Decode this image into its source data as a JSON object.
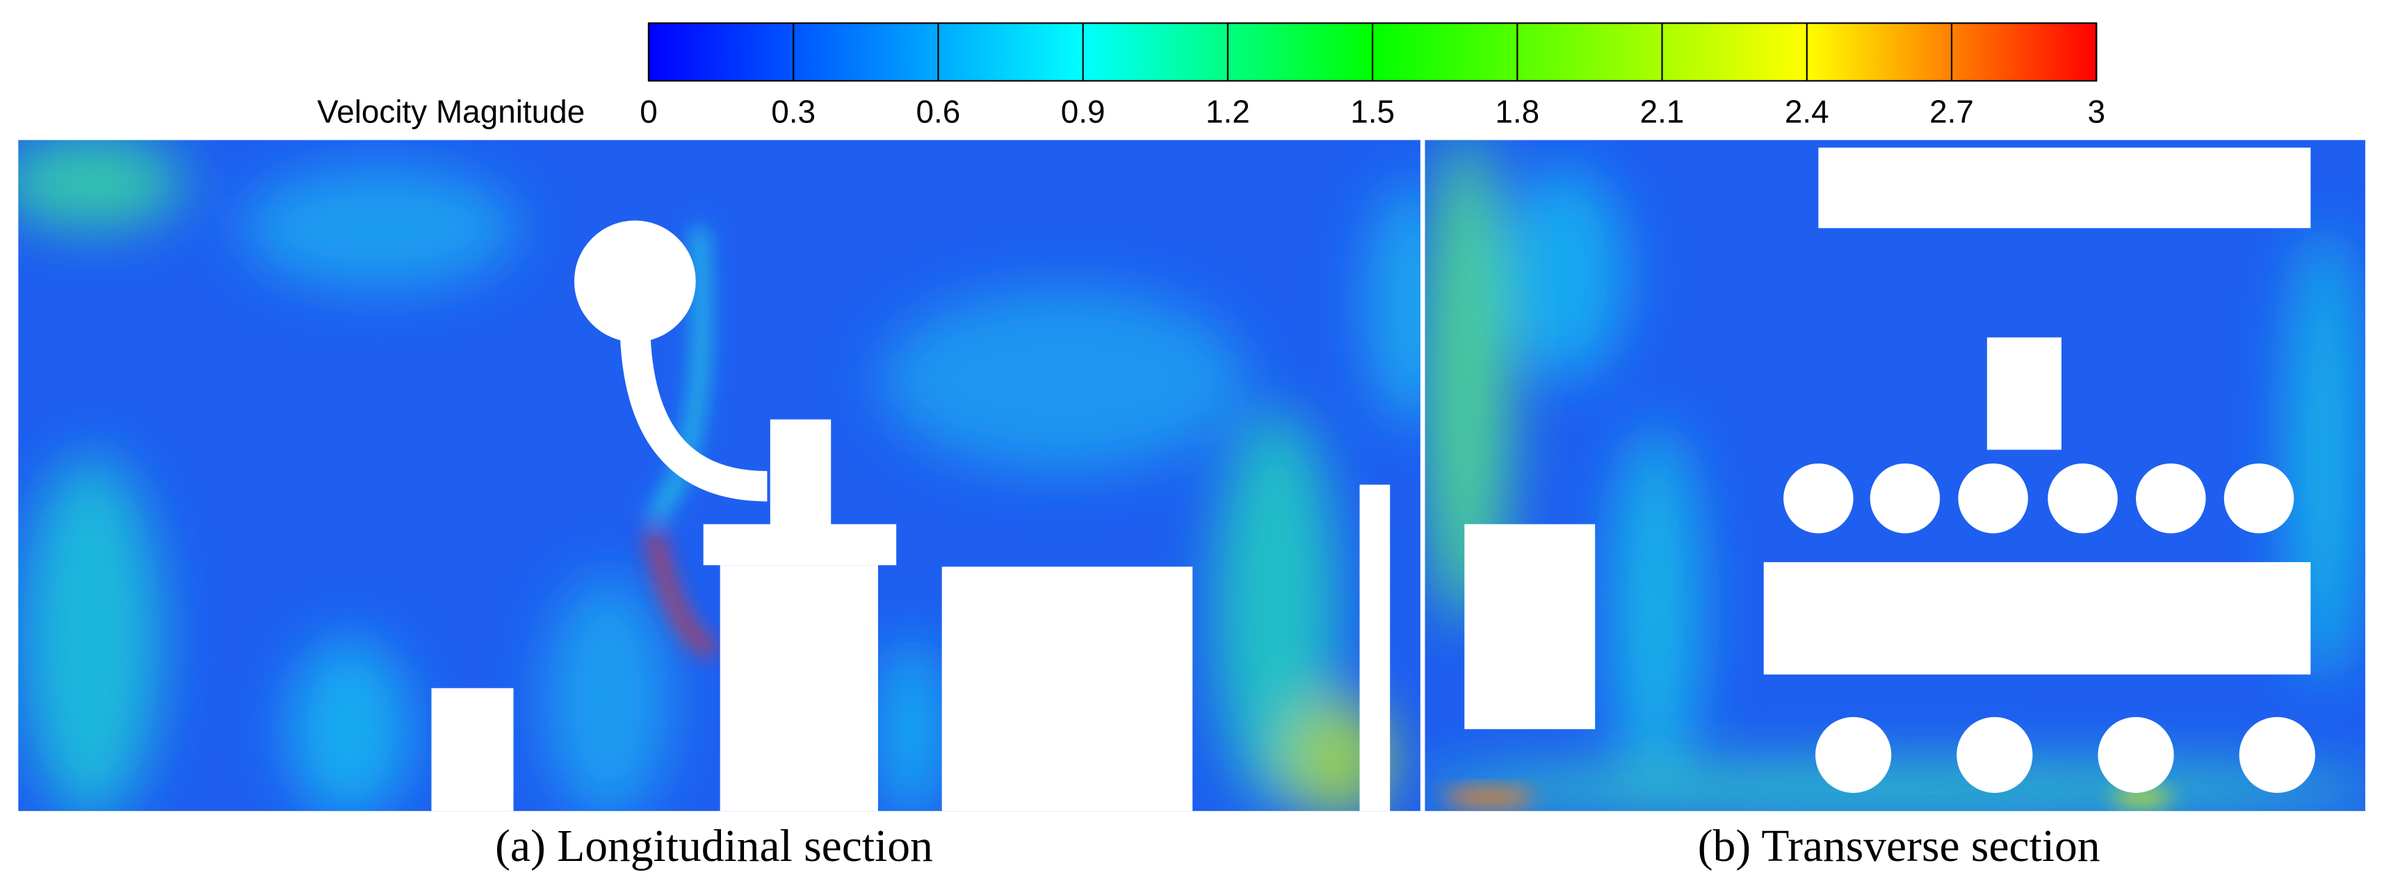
{
  "colorbar": {
    "label": "Velocity Magnitude",
    "lim": [
      0,
      3
    ],
    "ticks": [
      0,
      0.3,
      0.6,
      0.9,
      1.2,
      1.5,
      1.8,
      2.1,
      2.4,
      2.7,
      3
    ]
  },
  "panels": [
    {
      "caption": "(a) Longitudinal section"
    },
    {
      "caption": "(b) Transverse section"
    }
  ]
}
